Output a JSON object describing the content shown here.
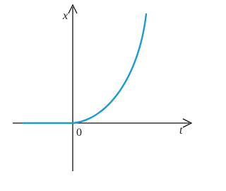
{
  "axes": {
    "y_label": "x",
    "x_label": "t",
    "origin_label": "0"
  }
}
